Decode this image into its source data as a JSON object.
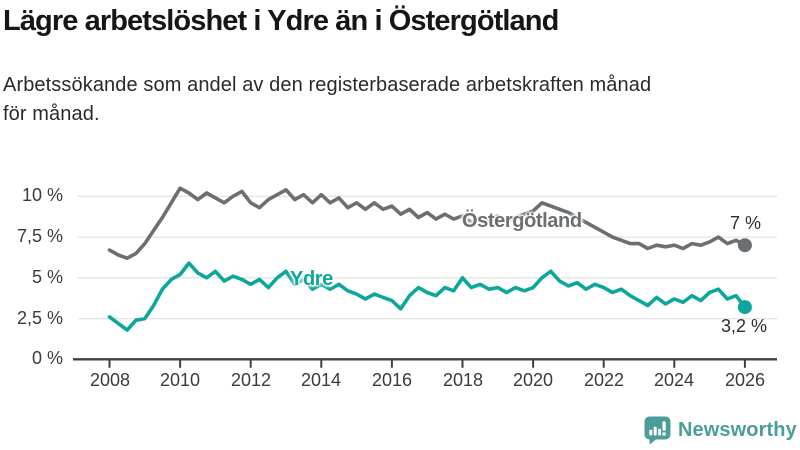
{
  "header": {
    "title": "Lägre arbetslöshet i Ydre än i Östergötland",
    "subtitle_line1": "Arbetssökande som andel av den registerbaserade arbetskraften månad",
    "subtitle_line2": "för månad."
  },
  "chart_data": {
    "type": "line",
    "title": "Lägre arbetslöshet i Ydre än i Östergötland",
    "xlabel": "",
    "ylabel": "Arbetssökande som andel av den registerbaserade arbetskraften månad för månad",
    "x_start": 2008,
    "x_step_years": 0.25,
    "x_end": 2026,
    "xlim": [
      2007.5,
      2026.9
    ],
    "ylim": [
      0,
      10.8
    ],
    "grid": "horizontal",
    "legend_position": "inline-labels",
    "yticks": {
      "values": [
        0,
        2.5,
        5,
        7.5,
        10
      ],
      "labels": [
        "0 %",
        "2,5 %",
        "5 %",
        "7,5 %",
        "10 %"
      ]
    },
    "xticks": {
      "values": [
        2008,
        2010,
        2012,
        2014,
        2016,
        2018,
        2020,
        2022,
        2024,
        2026
      ],
      "labels": [
        "2008",
        "2010",
        "2012",
        "2014",
        "2016",
        "2018",
        "2020",
        "2022",
        "2024",
        "2026"
      ]
    },
    "series": [
      {
        "name": "Östergötland",
        "color": "#6b6f72",
        "end_label": "7 %",
        "end_value": 7.0,
        "values": [
          6.7,
          6.4,
          6.2,
          6.5,
          7.1,
          7.9,
          8.7,
          9.6,
          10.5,
          10.2,
          9.8,
          10.2,
          9.9,
          9.6,
          10.0,
          10.3,
          9.6,
          9.3,
          9.8,
          10.1,
          10.4,
          9.8,
          10.1,
          9.6,
          10.1,
          9.6,
          9.9,
          9.3,
          9.6,
          9.2,
          9.6,
          9.2,
          9.4,
          8.9,
          9.2,
          8.7,
          9.0,
          8.6,
          8.9,
          8.6,
          8.8,
          8.4,
          8.7,
          8.5,
          8.8,
          8.5,
          8.7,
          8.9,
          9.1,
          9.6,
          9.4,
          9.2,
          9.0,
          8.7,
          8.4,
          8.1,
          7.8,
          7.5,
          7.3,
          7.1,
          7.1,
          6.8,
          7.0,
          6.9,
          7.0,
          6.8,
          7.1,
          7.0,
          7.2,
          7.5,
          7.1,
          7.3,
          7.0
        ]
      },
      {
        "name": "Ydre",
        "color": "#0ca79a",
        "end_label": "3,2 %",
        "end_value": 3.2,
        "values": [
          2.6,
          2.2,
          1.8,
          2.4,
          2.5,
          3.3,
          4.3,
          4.9,
          5.2,
          5.9,
          5.3,
          5.0,
          5.4,
          4.8,
          5.1,
          4.9,
          4.6,
          4.9,
          4.4,
          5.0,
          5.4,
          4.6,
          4.9,
          4.3,
          4.6,
          4.3,
          4.6,
          4.2,
          4.0,
          3.7,
          4.0,
          3.8,
          3.6,
          3.1,
          3.9,
          4.4,
          4.1,
          3.9,
          4.4,
          4.2,
          5.0,
          4.4,
          4.6,
          4.3,
          4.4,
          4.1,
          4.4,
          4.2,
          4.4,
          5.0,
          5.4,
          4.8,
          4.5,
          4.7,
          4.3,
          4.6,
          4.4,
          4.1,
          4.3,
          3.9,
          3.6,
          3.3,
          3.8,
          3.4,
          3.7,
          3.5,
          3.9,
          3.6,
          4.1,
          4.3,
          3.7,
          3.9,
          3.2
        ]
      }
    ]
  },
  "colors": {
    "grid": "#e4e4e4",
    "axis": "#3f3f3f",
    "tick_text": "#3b3b3b",
    "annotation_text": "#2d2d2d",
    "brand": "#4a9d98"
  },
  "footer": {
    "brand": "Newsworthy"
  }
}
